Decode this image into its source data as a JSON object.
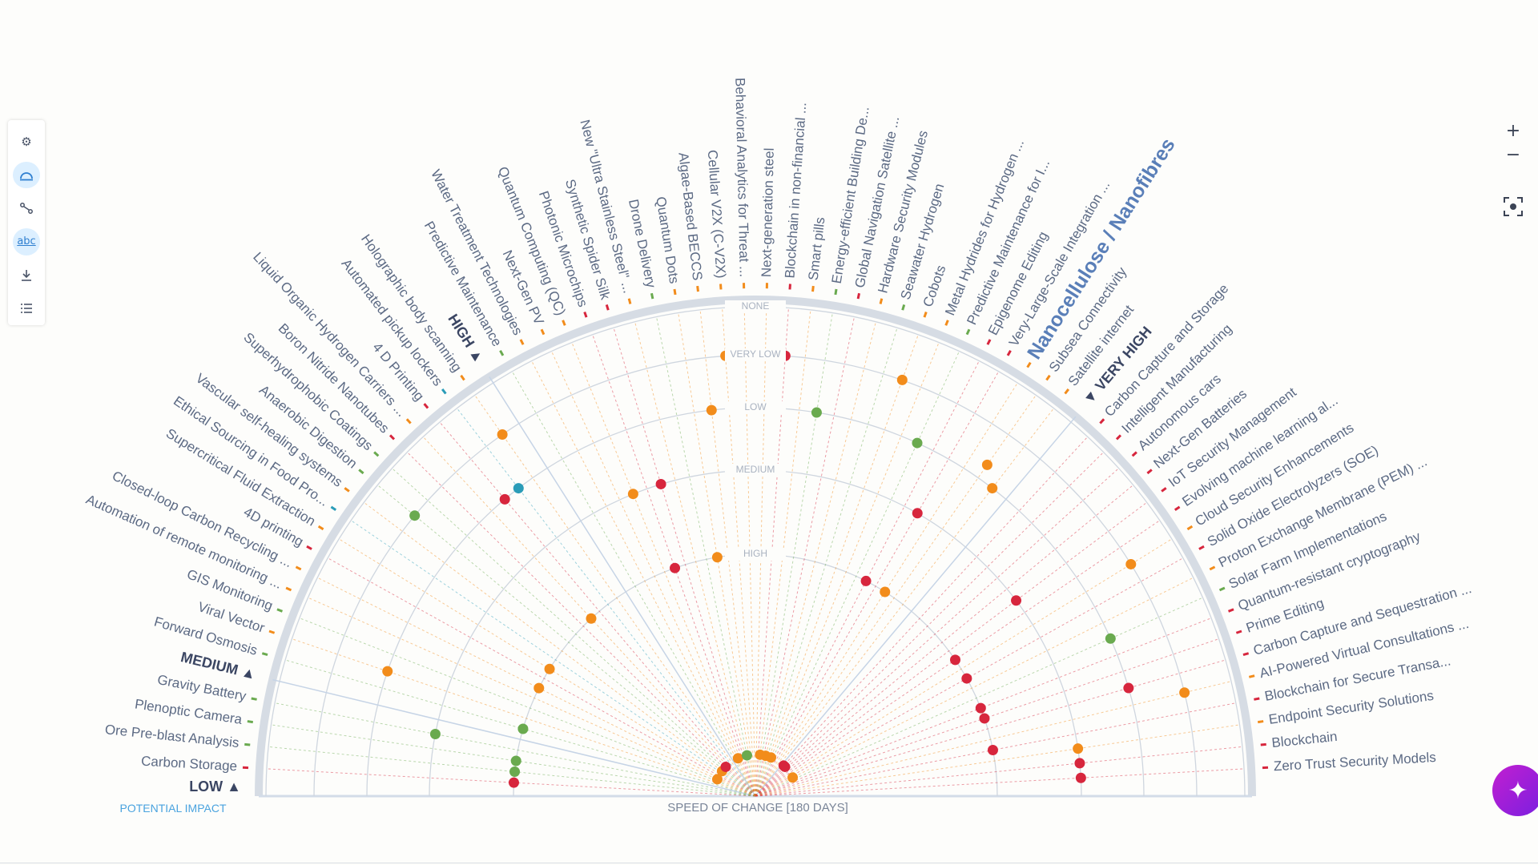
{
  "toolbar": {
    "items": [
      {
        "icon": "gear-icon"
      },
      {
        "icon": "radar-view-icon",
        "active": true
      },
      {
        "icon": "connections-icon"
      },
      {
        "icon": "labels-icon",
        "label": "abc",
        "active": true
      },
      {
        "icon": "download-icon"
      },
      {
        "icon": "list-icon"
      }
    ]
  },
  "zoom_controls": {
    "plus": "+",
    "minus": "−"
  },
  "colors": {
    "red": "#d7263d",
    "orange": "#f28c1b",
    "green": "#6aaa4f",
    "teal": "#2a9cb8",
    "label": "#5c6a84",
    "header": "#3b4663",
    "highlight": "#5a7fb8",
    "axis_impact": "#4aa3df"
  },
  "chart_data": {
    "type": "radar",
    "x_axis_label": "SPEED OF CHANGE [180 DAYS]",
    "y_axis_label": "POTENTIAL IMPACT",
    "rings": [
      "NONE",
      "VERY LOW",
      "LOW",
      "MEDIUM",
      "HIGH"
    ],
    "low_header": "LOW ▲",
    "items": [
      {
        "label": "Carbon Storage",
        "color": "red",
        "speed": 4
      },
      {
        "label": "Ore Pre-blast Analysis",
        "color": "green",
        "speed": 4
      },
      {
        "label": "Plenoptic Camera",
        "color": "green",
        "speed": 4
      },
      {
        "label": "Gravity Battery",
        "color": "green",
        "speed": 3
      },
      {
        "type": "header",
        "label": "MEDIUM ▲"
      },
      {
        "label": "Forward Osmosis",
        "color": "green",
        "speed": 4
      },
      {
        "label": "Viral Vector",
        "color": "orange",
        "speed": 2
      },
      {
        "label": "GIS Monitoring",
        "color": "green",
        "speed": null
      },
      {
        "label": "Automation of remote monitoring ...",
        "color": "orange",
        "speed": 5
      },
      {
        "label": "Closed-loop Carbon Recycling ...",
        "color": "orange",
        "speed": 4
      },
      {
        "label": "4D printing",
        "color": "red",
        "speed": null
      },
      {
        "label": "Supercritical Fluid Extraction",
        "color": "orange",
        "speed": 4
      },
      {
        "label": "Ethical Sourcing in Food Pro...",
        "color": "teal",
        "speed": null
      },
      {
        "label": "Vascular self-healing systems",
        "color": "orange",
        "speed": 5
      },
      {
        "label": "Anaerobic Digestion",
        "color": "green",
        "speed": 1
      },
      {
        "label": "Superhydrophobic Coatings",
        "color": "green",
        "speed": null
      },
      {
        "label": "Boron Nitride Nanotubes",
        "color": "red",
        "speed": 5
      },
      {
        "label": "Liquid Organic Hydrogen Carriers ...",
        "color": "orange",
        "speed": 4
      },
      {
        "label": "4 D Printing",
        "color": "red",
        "speed": 2
      },
      {
        "label": "Automated pickup lockers",
        "color": "teal",
        "speed": 2
      },
      {
        "label": "Holographic body scanning",
        "color": "orange",
        "speed": 1
      },
      {
        "type": "header",
        "label": "HIGH ▲"
      },
      {
        "label": "Predictive Maintenance",
        "color": "green",
        "speed": null
      },
      {
        "label": "Water Treatment Technologies",
        "color": "orange",
        "speed": null
      },
      {
        "label": "Next-Gen PV",
        "color": "orange",
        "speed": 5
      },
      {
        "label": "Quantum Computing (QC)",
        "color": "orange",
        "speed": 3
      },
      {
        "label": "Photonic Microchips",
        "color": "red",
        "speed": 4
      },
      {
        "label": "Synthetic Spider Silk",
        "color": "red",
        "speed": 3
      },
      {
        "label": "New \"Ultra Stainless Steel\" ...",
        "color": "orange",
        "speed": null
      },
      {
        "label": "Drone Delivery",
        "color": "green",
        "speed": 5
      },
      {
        "label": "Quantum Dots",
        "color": "orange",
        "speed": 4
      },
      {
        "label": "Algae-Based BECCS",
        "color": "orange",
        "speed": 2
      },
      {
        "label": "Cellular V2X (C-V2X)",
        "color": "orange",
        "speed": 1
      },
      {
        "label": "Behavioral Analytics for Threat ...",
        "color": "orange",
        "speed": 3
      },
      {
        "label": "Next-generation steel",
        "color": "orange",
        "speed": null
      },
      {
        "label": "Blockchain in non-financial ...",
        "color": "red",
        "speed": 1
      },
      {
        "label": "Smart pills",
        "color": "orange",
        "speed": 5
      },
      {
        "label": "Energy-efficient Building De...",
        "color": "green",
        "speed": 2
      },
      {
        "label": "Global Navigation Satellite ...",
        "color": "red",
        "speed": null
      },
      {
        "label": "Hardware Security Modules",
        "color": "orange",
        "speed": 5
      },
      {
        "label": "Seawater Hydrogen",
        "color": "green",
        "speed": null
      },
      {
        "label": "Cobots",
        "color": "orange",
        "speed": 1
      },
      {
        "label": "Metal Hydrides for Hydrogen ...",
        "color": "orange",
        "speed": 5
      },
      {
        "label": "Predictive Maintenance for I...",
        "color": "green",
        "speed": 2
      },
      {
        "label": "Epigenome Editing",
        "color": "red",
        "speed": 4
      },
      {
        "label": "Very-Large-Scale Integration ...",
        "color": "red",
        "speed": 3
      },
      {
        "label": "Nanocellulose / Nanofibres",
        "color": "orange",
        "speed": 4,
        "highlighted": true
      },
      {
        "label": "Subsea Connectivity",
        "color": "orange",
        "speed": 1.7
      },
      {
        "label": "Satellite internet",
        "color": "orange",
        "speed": 2
      },
      {
        "type": "header",
        "label": "▼ VERY HIGH"
      },
      {
        "label": "Carbon Capture and Storage",
        "color": "red",
        "speed": 5
      },
      {
        "label": "Intelligent Manufacturing",
        "color": "red",
        "speed": 5
      },
      {
        "label": "Autonomous cars",
        "color": "red",
        "speed": null
      },
      {
        "label": "Next-Gen Batteries",
        "color": "red",
        "speed": null
      },
      {
        "label": "IoT Security Management",
        "color": "red",
        "speed": 3
      },
      {
        "label": "Evolving machine learning al...",
        "color": "red",
        "speed": 4
      },
      {
        "label": "Cloud Security Enhancements",
        "color": "orange",
        "speed": 1
      },
      {
        "label": "Solid Oxide Electrolyzers (SOE)",
        "color": "red",
        "speed": 4
      },
      {
        "label": "Proton Exchange Membrane (PEM) ...",
        "color": "orange",
        "speed": 5
      },
      {
        "label": "Solar Farm Implementations",
        "color": "green",
        "speed": 2
      },
      {
        "label": "Quantum-resistant cryptography",
        "color": "red",
        "speed": 4
      },
      {
        "label": "Prime Editing",
        "color": "red",
        "speed": 4
      },
      {
        "label": "Carbon Capture and Sequestration ...",
        "color": "red",
        "speed": 2
      },
      {
        "label": "AI-Powered Virtual Consultations ...",
        "color": "orange",
        "speed": 1
      },
      {
        "label": "Blockchain for Secure Transa...",
        "color": "red",
        "speed": 4
      },
      {
        "label": "Endpoint Security Solutions",
        "color": "orange",
        "speed": 3
      },
      {
        "label": "Blockchain",
        "color": "red",
        "speed": 3
      },
      {
        "label": "Zero Trust Security Models",
        "color": "red",
        "speed": 3
      }
    ]
  }
}
